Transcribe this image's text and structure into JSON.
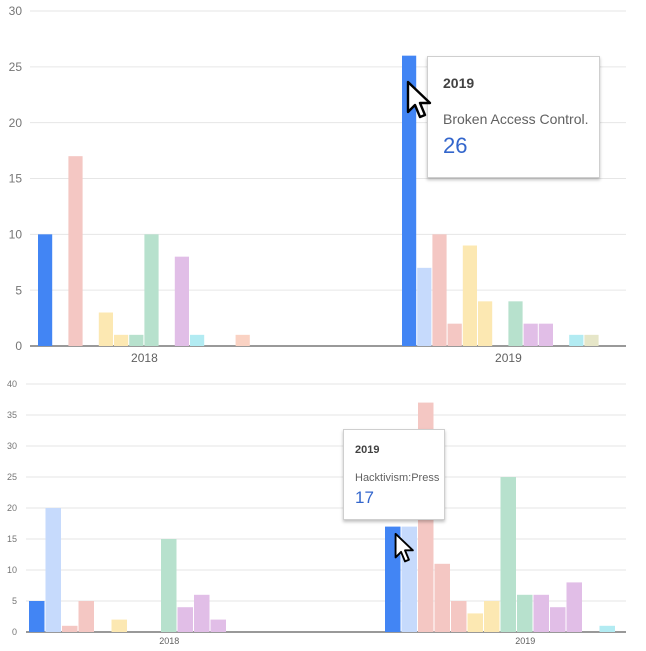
{
  "chart_data": [
    {
      "type": "bar",
      "categories": [
        "2018",
        "2019"
      ],
      "ylim": [
        0,
        30
      ],
      "yticks": [
        0,
        5,
        10,
        15,
        20,
        25,
        30
      ],
      "grid": true,
      "slots": 16,
      "colors": [
        "#4285f4",
        "#c6dafc",
        "#f4c7c3",
        "#f4c7c3",
        "#fce8b2",
        "#fce8b2",
        "#b7e1cd",
        "#b7e1cd",
        "#e1bee7",
        "#e1bee7",
        "#b2ebf2",
        "#b2ebf2",
        "#e6e6c8",
        "#fad2c3",
        "#d9d9d9",
        "#d9d9d9"
      ],
      "series_values": [
        [
          10,
          0,
          17,
          0,
          3,
          1,
          1,
          10,
          0,
          8,
          1,
          0,
          0,
          1,
          0,
          0
        ],
        [
          26,
          7,
          10,
          2,
          9,
          4,
          0,
          4,
          2,
          2,
          0,
          1,
          1,
          0,
          0,
          0
        ]
      ],
      "tooltip": {
        "title": "2019",
        "label": "Broken Access Control.",
        "value": "26"
      }
    },
    {
      "type": "bar",
      "categories": [
        "2018",
        "2019"
      ],
      "ylim": [
        0,
        40
      ],
      "yticks": [
        0,
        5,
        10,
        15,
        20,
        25,
        30,
        35,
        40
      ],
      "grid": true,
      "slots": 19,
      "colors": [
        "#4285f4",
        "#c6dafc",
        "#f4c7c3",
        "#f4c7c3",
        "#f4c7c3",
        "#fce8b2",
        "#fce8b2",
        "#b7e1cd",
        "#b7e1cd",
        "#e1bee7",
        "#e1bee7",
        "#e1bee7",
        "#b2ebf2",
        "#b2ebf2",
        "#fad2c3",
        "#fad2c3",
        "#fad2c3",
        "#fad2c3",
        "#fad2c3"
      ],
      "series_values": [
        [
          5,
          20,
          1,
          5,
          0,
          2,
          0,
          0,
          15,
          4,
          6,
          2,
          0,
          0,
          0,
          0,
          0,
          0,
          0
        ],
        [
          17,
          17,
          37,
          11,
          5,
          3,
          5,
          25,
          6,
          6,
          4,
          8,
          0,
          1,
          0,
          0,
          0,
          0,
          0
        ]
      ],
      "tooltip": {
        "title": "2019",
        "label": "Hacktivism:Press",
        "value": "17"
      }
    }
  ]
}
